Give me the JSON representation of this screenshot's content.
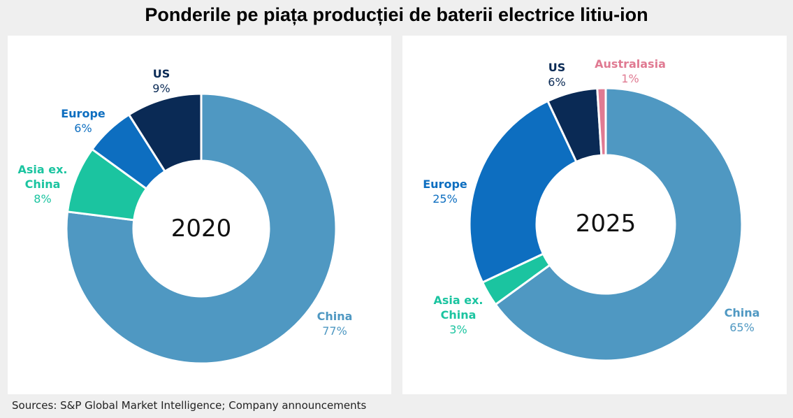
{
  "title": "Ponderile pe piața producției de baterii electrice litiu-ion",
  "source": "Sources: S&P Global Market Intelligence; Company announcements",
  "colors": {
    "China": "#4f98c2",
    "Asia ex. China": "#1bc4a0",
    "Europe": "#0d6ec0",
    "US": "#0a2a55",
    "Australasia": "#e07a92"
  },
  "chart_data": [
    {
      "type": "pie",
      "donut": true,
      "center_label": "2020",
      "slices": [
        {
          "name": "China",
          "value": 77,
          "label_lines": [
            "China"
          ],
          "pct": "77%"
        },
        {
          "name": "Asia ex. China",
          "value": 8,
          "label_lines": [
            "Asia ex.",
            "China"
          ],
          "pct": "8%"
        },
        {
          "name": "Europe",
          "value": 6,
          "label_lines": [
            "Europe"
          ],
          "pct": "6%"
        },
        {
          "name": "US",
          "value": 9,
          "label_lines": [
            "US"
          ],
          "pct": "9%"
        }
      ]
    },
    {
      "type": "pie",
      "donut": true,
      "center_label": "2025",
      "slices": [
        {
          "name": "China",
          "value": 65,
          "label_lines": [
            "China"
          ],
          "pct": "65%"
        },
        {
          "name": "Asia ex. China",
          "value": 3,
          "label_lines": [
            "Asia ex.",
            "China"
          ],
          "pct": "3%"
        },
        {
          "name": "Europe",
          "value": 25,
          "label_lines": [
            "Europe"
          ],
          "pct": "25%"
        },
        {
          "name": "US",
          "value": 6,
          "label_lines": [
            "US"
          ],
          "pct": "6%"
        },
        {
          "name": "Australasia",
          "value": 1,
          "label_lines": [
            "Australasia"
          ],
          "pct": "1%"
        }
      ]
    }
  ]
}
